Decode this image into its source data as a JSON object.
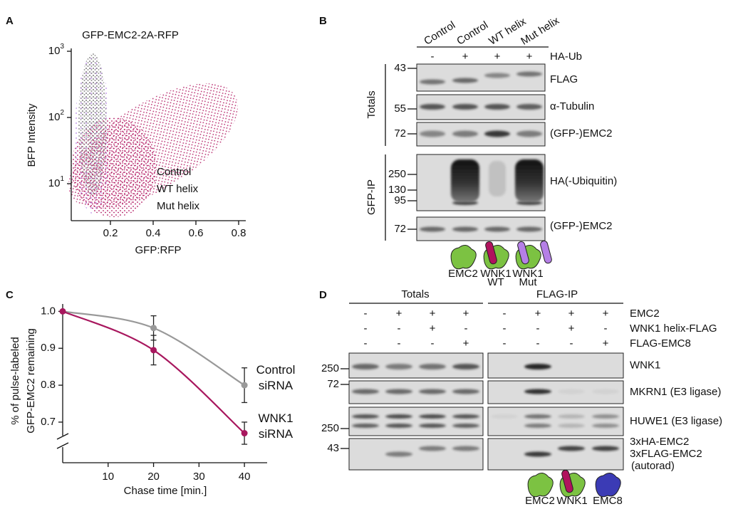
{
  "panel_a": {
    "label": "A",
    "title": "GFP-EMC2-2A-RFP",
    "y_label": "BFP Intensity",
    "x_label": "GFP:RFP",
    "yticks": [
      {
        "base": "10",
        "exp": "3"
      },
      {
        "base": "10",
        "exp": "2"
      },
      {
        "base": "10",
        "exp": "1"
      }
    ],
    "xticks": [
      "0.2",
      "0.4",
      "0.6",
      "0.8"
    ],
    "legend": [
      {
        "name": "Control",
        "color": "#8f8f8f"
      },
      {
        "name": "WT helix",
        "color": "#b0125d"
      },
      {
        "name": "Mut helix",
        "color": "#b57fe6"
      }
    ]
  },
  "panel_b": {
    "label": "B",
    "lanes": [
      "Control",
      "Control",
      "WT helix",
      "Mut helix"
    ],
    "ha_ub_label": "HA-Ub",
    "ha_ub": [
      "-",
      "+",
      "+",
      "+"
    ],
    "groups": [
      "Totals",
      "GFP-IP"
    ],
    "blots": [
      {
        "label": "FLAG",
        "markers": [
          "43"
        ]
      },
      {
        "label": "α-Tubulin",
        "markers": [
          "55"
        ]
      },
      {
        "label": "(GFP-)EMC2",
        "markers": [
          "72"
        ]
      },
      {
        "label": "HA(-Ubiquitin)",
        "markers": [
          "250",
          "130",
          "95"
        ]
      },
      {
        "label": "(GFP-)EMC2",
        "markers": [
          "72"
        ]
      }
    ],
    "icons": [
      {
        "lines": [
          "EMC2"
        ],
        "color": "#3aa635"
      },
      {
        "lines": [
          "WNK1",
          "WT"
        ],
        "color": "#b0125d"
      },
      {
        "lines": [
          "WNK1",
          "Mut"
        ],
        "color": "#b57fe6"
      }
    ]
  },
  "panel_c": {
    "label": "C",
    "chart_data": {
      "type": "line",
      "y_label": [
        "% of pulse-labeled",
        "GFP-EMC2 remaining"
      ],
      "x_label": "Chase time [min.]",
      "x": [
        0,
        20,
        40
      ],
      "xlim": [
        0,
        45
      ],
      "xticks": [
        10,
        20,
        30,
        40
      ],
      "ylim": [
        0.59,
        1.02
      ],
      "yticks": [
        0.7,
        0.8,
        0.9,
        {
          "value": 1,
          "label": "1.0"
        }
      ],
      "series": [
        {
          "name": "Control siRNA",
          "color": "#999999",
          "values": [
            1,
            0.955,
            0.8
          ],
          "errors": [
            null,
            0.033,
            0.047
          ]
        },
        {
          "name": "WNK1 siRNA",
          "color": "#a8175e",
          "values": [
            1,
            0.895,
            0.67
          ],
          "errors": [
            null,
            0.04,
            0.03
          ]
        }
      ]
    }
  },
  "panel_d": {
    "label": "D",
    "groups": [
      "Totals",
      "FLAG-IP"
    ],
    "conditions": [
      {
        "label": "EMC2",
        "signs": [
          "-",
          "+",
          "+",
          "+",
          "-",
          "+",
          "+",
          "+"
        ]
      },
      {
        "label": "WNK1 helix-FLAG",
        "signs": [
          "-",
          "-",
          "+",
          "-",
          "-",
          "-",
          "+",
          "-"
        ]
      },
      {
        "label": "FLAG-EMC8",
        "signs": [
          "-",
          "-",
          "-",
          "+",
          "-",
          "-",
          "-",
          "+"
        ]
      }
    ],
    "blots": [
      {
        "labels": [
          "WNK1"
        ],
        "markers": [
          "250"
        ]
      },
      {
        "labels": [
          "MKRN1 (E3 ligase)"
        ],
        "markers": [
          "72"
        ]
      },
      {
        "labels": [
          "HUWE1 (E3 ligase)"
        ],
        "markers": [
          "250"
        ]
      },
      {
        "labels": [
          "3xHA-EMC2",
          "3xFLAG-EMC2"
        ],
        "note": "(autorad)",
        "markers": [
          "43"
        ]
      }
    ],
    "icons": [
      {
        "lines": [
          "EMC2"
        ],
        "color": "#3aa635"
      },
      {
        "lines": [
          "WNK1"
        ],
        "color": "#b0125d"
      },
      {
        "lines": [
          "EMC8"
        ],
        "color": "#3b3bb5"
      }
    ]
  }
}
